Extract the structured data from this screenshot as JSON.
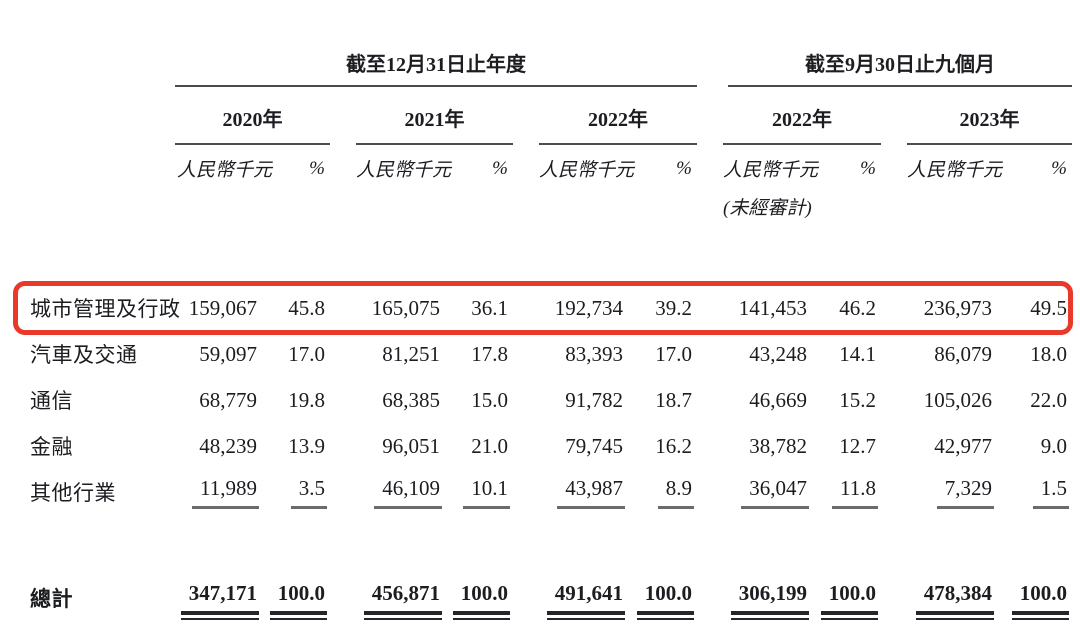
{
  "table": {
    "period_headers": [
      "截至12月31日止年度",
      "截至9月30日止九個月"
    ],
    "year_headers": [
      "2020年",
      "2021年",
      "2022年",
      "2022年",
      "2023年"
    ],
    "unit_label": "人民幣千元",
    "percent_label": "%",
    "unaudited_note": "(未經審計)",
    "highlight_color": "#e8392b",
    "rows": [
      {
        "label": "城市管理及行政",
        "highlighted": true,
        "values": [
          "159,067",
          "45.8",
          "165,075",
          "36.1",
          "192,734",
          "39.2",
          "141,453",
          "46.2",
          "236,973",
          "49.5"
        ]
      },
      {
        "label": "汽車及交通",
        "highlighted": false,
        "values": [
          "59,097",
          "17.0",
          "81,251",
          "17.8",
          "83,393",
          "17.0",
          "43,248",
          "14.1",
          "86,079",
          "18.0"
        ]
      },
      {
        "label": "通信",
        "highlighted": false,
        "values": [
          "68,779",
          "19.8",
          "68,385",
          "15.0",
          "91,782",
          "18.7",
          "46,669",
          "15.2",
          "105,026",
          "22.0"
        ]
      },
      {
        "label": "金融",
        "highlighted": false,
        "values": [
          "48,239",
          "13.9",
          "96,051",
          "21.0",
          "79,745",
          "16.2",
          "38,782",
          "12.7",
          "42,977",
          "9.0"
        ]
      },
      {
        "label": "其他行業",
        "highlighted": false,
        "values": [
          "11,989",
          "3.5",
          "46,109",
          "10.1",
          "43,987",
          "8.9",
          "36,047",
          "11.8",
          "7,329",
          "1.5"
        ]
      }
    ],
    "total": {
      "label": "總計",
      "values": [
        "347,171",
        "100.0",
        "456,871",
        "100.0",
        "491,641",
        "100.0",
        "306,199",
        "100.0",
        "478,384",
        "100.0"
      ]
    }
  }
}
